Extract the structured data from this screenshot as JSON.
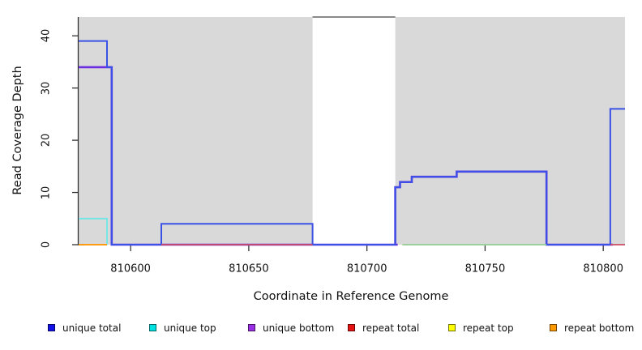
{
  "figure": {
    "xlabel": "Coordinate in Reference Genome",
    "ylabel": "Read Coverage Depth"
  },
  "legend": {
    "position": "bottom",
    "items": [
      {
        "label": "unique total",
        "color": "#1212e6"
      },
      {
        "label": "unique top",
        "color": "#00e1e1"
      },
      {
        "label": "unique bottom",
        "color": "#9b2fe6"
      },
      {
        "label": "repeat total",
        "color": "#e61212"
      },
      {
        "label": "repeat top",
        "color": "#ffff00"
      },
      {
        "label": "repeat bottom",
        "color": "#ff9900"
      }
    ]
  },
  "chart_data": {
    "type": "line",
    "subtype": "step-coverage",
    "title": "",
    "xlabel": "Coordinate in Reference Genome",
    "ylabel": "Read Coverage Depth",
    "xlim": [
      810578,
      810809.2
    ],
    "ylim": [
      0,
      43.6
    ],
    "x_ticks": [
      810600,
      810650,
      810700,
      810750,
      810800
    ],
    "y_ticks": [
      0,
      10,
      20,
      30,
      40
    ],
    "grid": false,
    "legend_position": "bottom",
    "background_bands": [
      {
        "x0": 810578,
        "x1": 810677,
        "color": "#d9d9d9"
      },
      {
        "x0": 810712,
        "x1": 810809.2,
        "color": "#d9d9d9"
      }
    ],
    "clipped_region_top_line": {
      "x0": 810677,
      "x1": 810712,
      "y": 43.6,
      "color": "#8a8a8a"
    },
    "series": [
      {
        "name": "unique bottom",
        "color": "#6b2fe0",
        "width": 2.6,
        "segments": [
          [
            [
              810578,
              34
            ],
            [
              810592,
              34
            ],
            [
              810592,
              0
            ],
            [
              810713,
              0
            ]
          ],
          [
            [
              810712,
              0
            ],
            [
              810712,
              11
            ],
            [
              810714,
              11
            ],
            [
              810714,
              12
            ],
            [
              810719,
              12
            ],
            [
              810719,
              13
            ],
            [
              810738,
              13
            ],
            [
              810738,
              14
            ],
            [
              810776,
              14
            ],
            [
              810776,
              0
            ],
            [
              810804,
              0
            ]
          ]
        ]
      },
      {
        "name": "unique total",
        "color": "#3b52e6",
        "width": 2,
        "segments": [
          [
            [
              810578,
              39
            ],
            [
              810590,
              39
            ],
            [
              810590,
              34
            ],
            [
              810592,
              34
            ],
            [
              810592,
              0
            ],
            [
              810613,
              0
            ],
            [
              810613,
              4
            ],
            [
              810677,
              4
            ],
            [
              810677,
              0
            ],
            [
              810712,
              0
            ],
            [
              810712,
              11
            ],
            [
              810714,
              11
            ],
            [
              810714,
              12
            ],
            [
              810719,
              12
            ],
            [
              810719,
              13
            ],
            [
              810738,
              13
            ],
            [
              810738,
              14
            ],
            [
              810776,
              14
            ],
            [
              810776,
              0
            ],
            [
              810803,
              0
            ],
            [
              810803,
              26
            ],
            [
              810809.2,
              26
            ]
          ]
        ]
      },
      {
        "name": "unique top",
        "color": "#6fe6e6",
        "width": 1.8,
        "segments": [
          [
            [
              810578,
              5
            ],
            [
              810590,
              5
            ],
            [
              810590,
              0
            ]
          ]
        ]
      },
      {
        "name": "repeat bottom",
        "color": "#ff9a14",
        "width": 2,
        "segments": [
          [
            [
              810578,
              0
            ],
            [
              810590,
              0
            ]
          ]
        ]
      },
      {
        "name": "repeat total",
        "color": "#cc4d66",
        "width": 1.8,
        "segments": [
          [
            [
              810613,
              0
            ],
            [
              810677,
              0
            ]
          ],
          [
            [
              810803,
              0
            ],
            [
              810809.2,
              0
            ]
          ]
        ]
      },
      {
        "name": "baseline overlap green",
        "color": "#90cd90",
        "width": 1.8,
        "segments": [
          [
            [
              810715,
              0
            ],
            [
              810776,
              0
            ]
          ]
        ]
      }
    ]
  }
}
